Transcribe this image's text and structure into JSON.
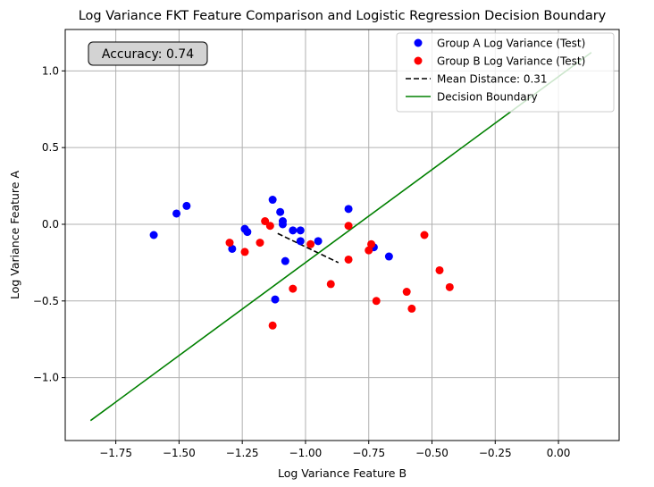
{
  "chart_data": {
    "type": "scatter",
    "title": "Log Variance FKT Feature Comparison and Logistic Regression Decision Boundary",
    "xlabel": "Log Variance Feature B",
    "ylabel": "Log Variance Feature A",
    "xlim": [
      -1.95,
      0.24
    ],
    "ylim": [
      -1.41,
      1.27
    ],
    "xticks": [
      -1.75,
      -1.5,
      -1.25,
      -1.0,
      -0.75,
      -0.5,
      -0.25,
      0.0
    ],
    "xtick_labels": [
      "−1.75",
      "−1.50",
      "−1.25",
      "−1.00",
      "−0.75",
      "−0.50",
      "−0.25",
      "0.00"
    ],
    "yticks": [
      -1.0,
      -0.5,
      0.0,
      0.5,
      1.0
    ],
    "ytick_labels": [
      "−1.0",
      "−0.5",
      "0.0",
      "0.5",
      "1.0"
    ],
    "grid": true,
    "legend_position": "top-right",
    "annotation": "Accuracy: 0.74",
    "series": [
      {
        "name": "Group A Log Variance (Test)",
        "kind": "scatter",
        "color": "#0000ff",
        "points": [
          [
            -1.6,
            -0.07
          ],
          [
            -1.51,
            0.07
          ],
          [
            -1.47,
            0.12
          ],
          [
            -1.29,
            -0.16
          ],
          [
            -1.24,
            -0.03
          ],
          [
            -1.23,
            -0.05
          ],
          [
            -1.13,
            0.16
          ],
          [
            -1.12,
            -0.49
          ],
          [
            -1.1,
            0.08
          ],
          [
            -1.09,
            0.0
          ],
          [
            -1.09,
            0.02
          ],
          [
            -1.08,
            -0.24
          ],
          [
            -1.05,
            -0.04
          ],
          [
            -1.02,
            -0.04
          ],
          [
            -1.02,
            -0.11
          ],
          [
            -0.95,
            -0.11
          ],
          [
            -0.83,
            0.1
          ],
          [
            -0.73,
            -0.15
          ],
          [
            -0.67,
            -0.21
          ]
        ]
      },
      {
        "name": "Group B Log Variance (Test)",
        "kind": "scatter",
        "color": "#ff0000",
        "points": [
          [
            -1.3,
            -0.12
          ],
          [
            -1.24,
            -0.18
          ],
          [
            -1.18,
            -0.12
          ],
          [
            -1.16,
            0.02
          ],
          [
            -1.14,
            -0.01
          ],
          [
            -1.13,
            -0.66
          ],
          [
            -1.05,
            -0.42
          ],
          [
            -0.98,
            -0.13
          ],
          [
            -0.9,
            -0.39
          ],
          [
            -0.83,
            -0.01
          ],
          [
            -0.83,
            -0.23
          ],
          [
            -0.75,
            -0.17
          ],
          [
            -0.74,
            -0.13
          ],
          [
            -0.72,
            -0.5
          ],
          [
            -0.6,
            -0.44
          ],
          [
            -0.58,
            -0.55
          ],
          [
            -0.53,
            -0.07
          ],
          [
            -0.47,
            -0.3
          ],
          [
            -0.43,
            -0.41
          ]
        ]
      },
      {
        "name": "Mean Distance: 0.31",
        "kind": "line",
        "style": "dashed",
        "color": "#000000",
        "points": [
          [
            -1.11,
            -0.06
          ],
          [
            -0.87,
            -0.25
          ]
        ]
      },
      {
        "name": "Decision Boundary",
        "kind": "line",
        "style": "solid",
        "color": "#008000",
        "points": [
          [
            -1.85,
            -1.28
          ],
          [
            0.13,
            1.12
          ]
        ]
      }
    ]
  }
}
